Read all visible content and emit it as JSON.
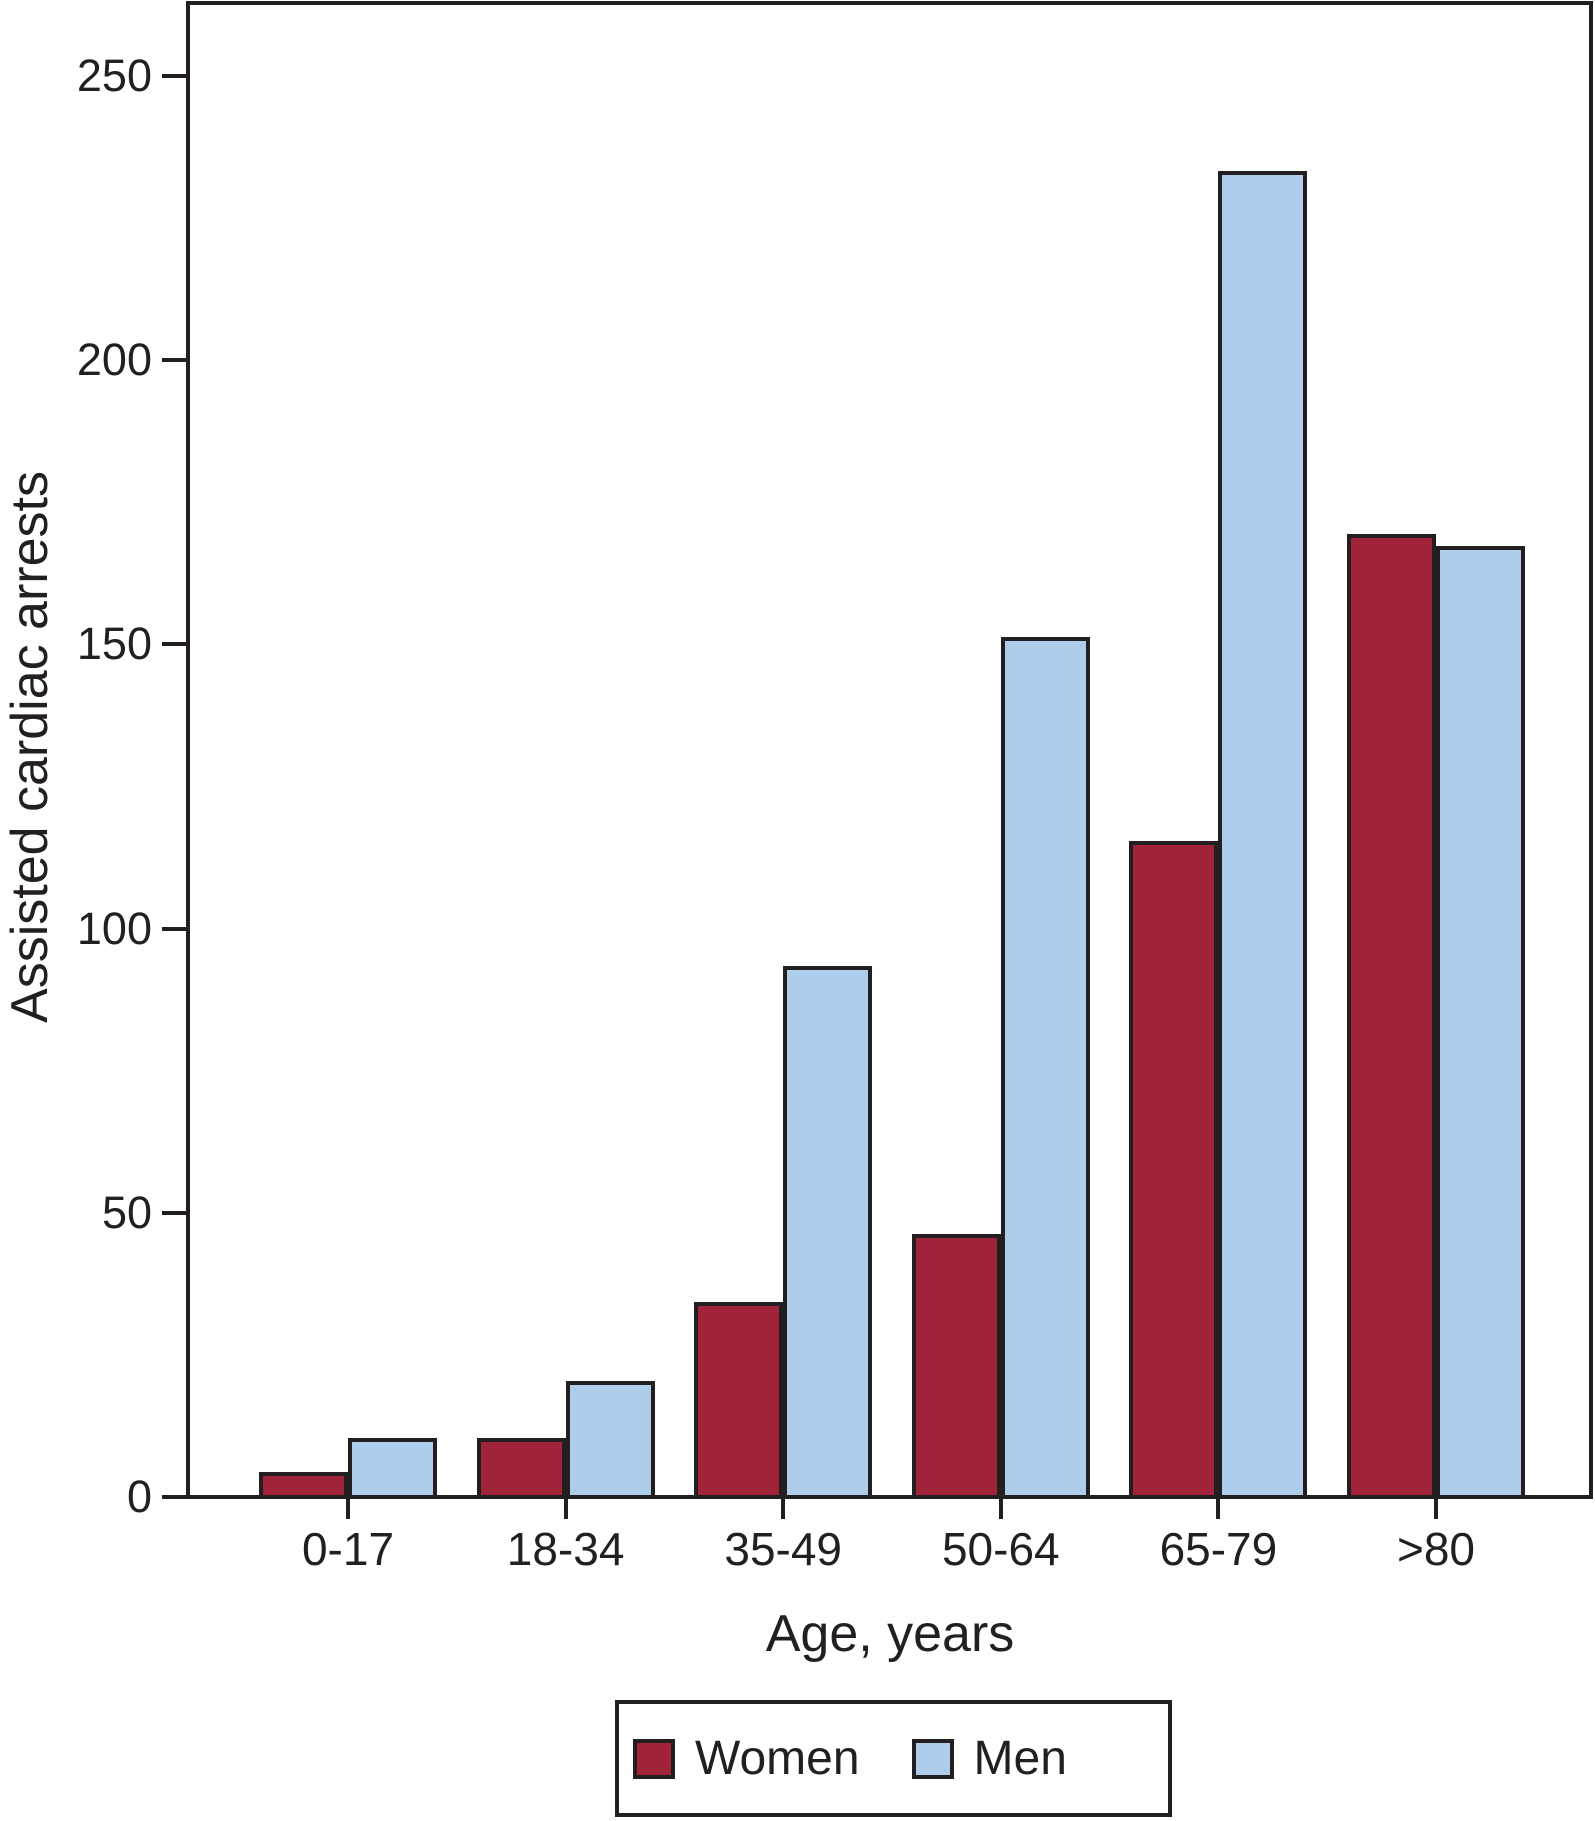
{
  "figure": {
    "y_axis_title": "Assisted cardiac arrests",
    "x_axis_title": "Age, years"
  },
  "legend": {
    "items": [
      {
        "label": "Women",
        "color": "#A12339"
      },
      {
        "label": "Men",
        "color": "#AECDEA"
      }
    ]
  },
  "chart_data": {
    "type": "bar",
    "categories": [
      "0-17",
      "18-34",
      "35-49",
      "50-64",
      "65-79",
      ">80"
    ],
    "series": [
      {
        "name": "Women",
        "color": "#A12339",
        "values": [
          4,
          10,
          34,
          46,
          115,
          169
        ]
      },
      {
        "name": "Men",
        "color": "#AECDEA",
        "values": [
          10,
          20,
          93,
          151,
          233,
          167
        ]
      }
    ],
    "title": "",
    "xlabel": "Age, years",
    "ylabel": "Assisted cardiac arrests",
    "ylim": [
      0,
      250
    ],
    "yticks": [
      0,
      50,
      100,
      150,
      200,
      250
    ],
    "grid": false,
    "bar_outline_color": "#231F20",
    "legend_position": "below-x-axis"
  }
}
